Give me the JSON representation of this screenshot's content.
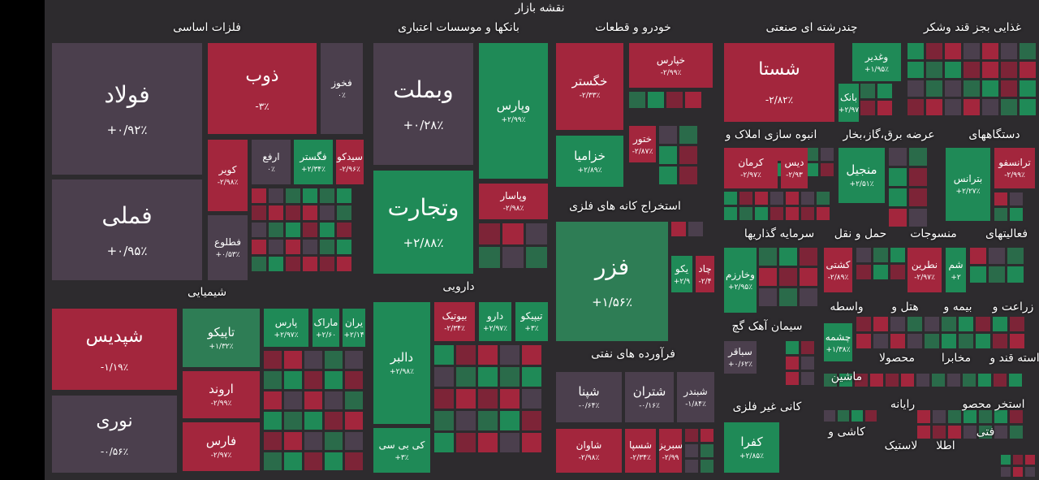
{
  "header": {
    "title": "نقشه بازار"
  },
  "sectors": [
    {
      "label": "فلزات اساسی",
      "tiles": [
        {
          "name": "فولاد",
          "change": "+۰/۹۲٪",
          "color": "#4b3f4d"
        },
        {
          "name": "فملی",
          "change": "+۰/۹۵٪",
          "color": "#4b3f4d"
        },
        {
          "name": "ذوب",
          "change": "-۳٪",
          "color": "#a3263d"
        },
        {
          "name": "فخوز",
          "change": "۰٪",
          "color": "#4b3f4d"
        },
        {
          "name": "کویر",
          "change": "-۲/۹۸٪",
          "color": "#a3263d"
        },
        {
          "name": "ارفع",
          "change": "۰٪",
          "color": "#4b3f4d"
        },
        {
          "name": "فگستر",
          "change": "+۲/۳۴٪",
          "color": "#1f8a57"
        },
        {
          "name": "سیدکو",
          "change": "-۲/۹۶٪",
          "color": "#a3263d"
        },
        {
          "name": "فطلوع",
          "change": "+۰/۵۳٪",
          "color": "#4b3f4d"
        }
      ]
    },
    {
      "label": "بانکها و موسسات اعتباری",
      "tiles": [
        {
          "name": "وبملت",
          "change": "+۰/۲۸٪",
          "color": "#4b3f4d"
        },
        {
          "name": "وتجارت",
          "change": "+۲/۸۸٪",
          "color": "#1f8a57"
        },
        {
          "name": "وپارس",
          "change": "+۲/۹۹٪",
          "color": "#1f8a57"
        },
        {
          "name": "وپاسار",
          "change": "-۲/۹۸٪",
          "color": "#a3263d"
        }
      ]
    },
    {
      "label": "خودرو و قطعات",
      "tiles": [
        {
          "name": "خگستر",
          "change": "-۲/۳۳٪",
          "color": "#a3263d"
        },
        {
          "name": "خزامیا",
          "change": "+۲/۸۹٪",
          "color": "#1f8a57"
        },
        {
          "name": "خپارس",
          "change": "-۲/۹۹٪",
          "color": "#a3263d"
        },
        {
          "name": "ختور",
          "change": "-۲/۸۷٪",
          "color": "#a3263d"
        }
      ]
    },
    {
      "label": "استخراج کانه های فلزی",
      "tiles": [
        {
          "name": "فزر",
          "change": "+۱/۵۶٪",
          "color": "#2e7d55"
        },
        {
          "name": "یکو",
          "change": "+۲/۹",
          "color": "#1f8a57"
        },
        {
          "name": "چاد",
          "change": "-۲/۴",
          "color": "#a3263d"
        }
      ]
    },
    {
      "label": "فرآورده های نفتی",
      "tiles": [
        {
          "name": "شپنا",
          "change": "-۰/۶۴٪",
          "color": "#4b3f4d"
        },
        {
          "name": "شتران",
          "change": "-۰/۱۶٪",
          "color": "#4b3f4d"
        },
        {
          "name": "شبندر",
          "change": "-۱/۸۴٪",
          "color": "#4b3f4d"
        },
        {
          "name": "شاوان",
          "change": "-۲/۹۸٪",
          "color": "#a3263d"
        },
        {
          "name": "شسپا",
          "change": "-۲/۳۴٪",
          "color": "#a3263d"
        },
        {
          "name": "سبریز",
          "change": "-۲/۹۹",
          "color": "#a3263d"
        }
      ]
    },
    {
      "label": "چندرشته ای صنعتی",
      "tiles": [
        {
          "name": "شستا",
          "change": "-۲/۸۲٪",
          "color": "#a3263d"
        },
        {
          "name": "وغدیر",
          "change": "+۱/۹۵٪",
          "color": "#1f8a57"
        },
        {
          "name": "بانک",
          "change": "+۲/۹۷",
          "color": "#1f8a57"
        }
      ]
    },
    {
      "label": "غذایی بجز قند وشکر"
    },
    {
      "label": "انبوه سازی املاک و",
      "tiles": [
        {
          "name": "کرمان",
          "change": "-۲/۹۷٪",
          "color": "#a3263d"
        },
        {
          "name": "دیس",
          "change": "-۲/۹۳",
          "color": "#a3263d"
        }
      ]
    },
    {
      "label": "عرضه برق،گاز،بخار",
      "tiles": [
        {
          "name": "منجیل",
          "change": "+۲/۵۱٪",
          "color": "#1f8a57"
        }
      ]
    },
    {
      "label": "دستگاههای",
      "tiles": [
        {
          "name": "بترانس",
          "change": "+۲/۲۷٪",
          "color": "#1f8a57"
        },
        {
          "name": "ترانسفو",
          "change": "-۲/۹۹٪",
          "color": "#a3263d"
        }
      ]
    },
    {
      "label": "سرمایه گذاریها",
      "tiles": [
        {
          "name": "وخارزم",
          "change": "+۲/۹۵٪",
          "color": "#1f8a57"
        }
      ]
    },
    {
      "label": "حمل و نقل",
      "tiles": [
        {
          "name": "کشتی",
          "change": "-۲/۸۹٪",
          "color": "#a3263d"
        }
      ]
    },
    {
      "label": "منسوجات",
      "tiles": [
        {
          "name": "نطرین",
          "change": "-۲/۹۷٪",
          "color": "#a3263d"
        }
      ]
    },
    {
      "label": "فعالیتهای",
      "tiles": [
        {
          "name": "شم",
          "change": "+۲",
          "color": "#1f8a57"
        }
      ]
    },
    {
      "label": "سیمان آهک گچ",
      "tiles": [
        {
          "name": "سباقر",
          "change": "+۰/۶۲٪",
          "color": "#4b3f4d"
        }
      ]
    },
    {
      "label": "کانی غیر فلزی",
      "tiles": [
        {
          "name": "کفرا",
          "change": "+۲/۸۵٪",
          "color": "#1f8a57"
        }
      ]
    },
    {
      "label": "واسطه",
      "tiles": [
        {
          "name": "چشمه",
          "change": "+۱/۳۸٪",
          "color": "#1f8a57"
        }
      ]
    },
    {
      "label": "هتل و"
    },
    {
      "label": "بیمه و"
    },
    {
      "label": "زراعت و"
    },
    {
      "label": "ماشین"
    },
    {
      "label": "محصولا"
    },
    {
      "label": "مخابرا"
    },
    {
      "label": "استه قند و"
    },
    {
      "label": "رایانه"
    },
    {
      "label": "استخر محصو"
    },
    {
      "label": "کاشی و"
    },
    {
      "label": "لاستیک"
    },
    {
      "label": "اطلا"
    },
    {
      "label": "فتی"
    },
    {
      "label": "شیمیایی",
      "tiles": [
        {
          "name": "شپدیس",
          "change": "-۱/۱۹٪",
          "color": "#a3263d"
        },
        {
          "name": "نوری",
          "change": "-۰/۵۶٪",
          "color": "#4b3f4d"
        },
        {
          "name": "تاپیکو",
          "change": "+۱/۳۲٪",
          "color": "#2e7d55"
        },
        {
          "name": "اروند",
          "change": "-۲/۹۹٪",
          "color": "#a3263d"
        },
        {
          "name": "فارس",
          "change": "-۲/۹۷٪",
          "color": "#a3263d"
        },
        {
          "name": "پارس",
          "change": "+۲/۹۷٪",
          "color": "#1f8a57"
        },
        {
          "name": "ماراک",
          "change": "+۲/۶۰",
          "color": "#1f8a57"
        },
        {
          "name": "یران",
          "change": "+۲/۱۴",
          "color": "#1f8a57"
        }
      ]
    },
    {
      "label": "دارویی",
      "tiles": [
        {
          "name": "دالبر",
          "change": "+۲/۹۸٪",
          "color": "#1f8a57"
        },
        {
          "name": "کی بی سی",
          "change": "+۳٪",
          "color": "#1f8a57"
        },
        {
          "name": "تیپیکو",
          "change": "+۳٪",
          "color": "#1f8a57"
        },
        {
          "name": "دارو",
          "change": "+۲/۹۷٪",
          "color": "#1f8a57"
        },
        {
          "name": "بیوتیک",
          "change": "-۲/۳۴٪",
          "color": "#a3263d"
        }
      ]
    }
  ]
}
